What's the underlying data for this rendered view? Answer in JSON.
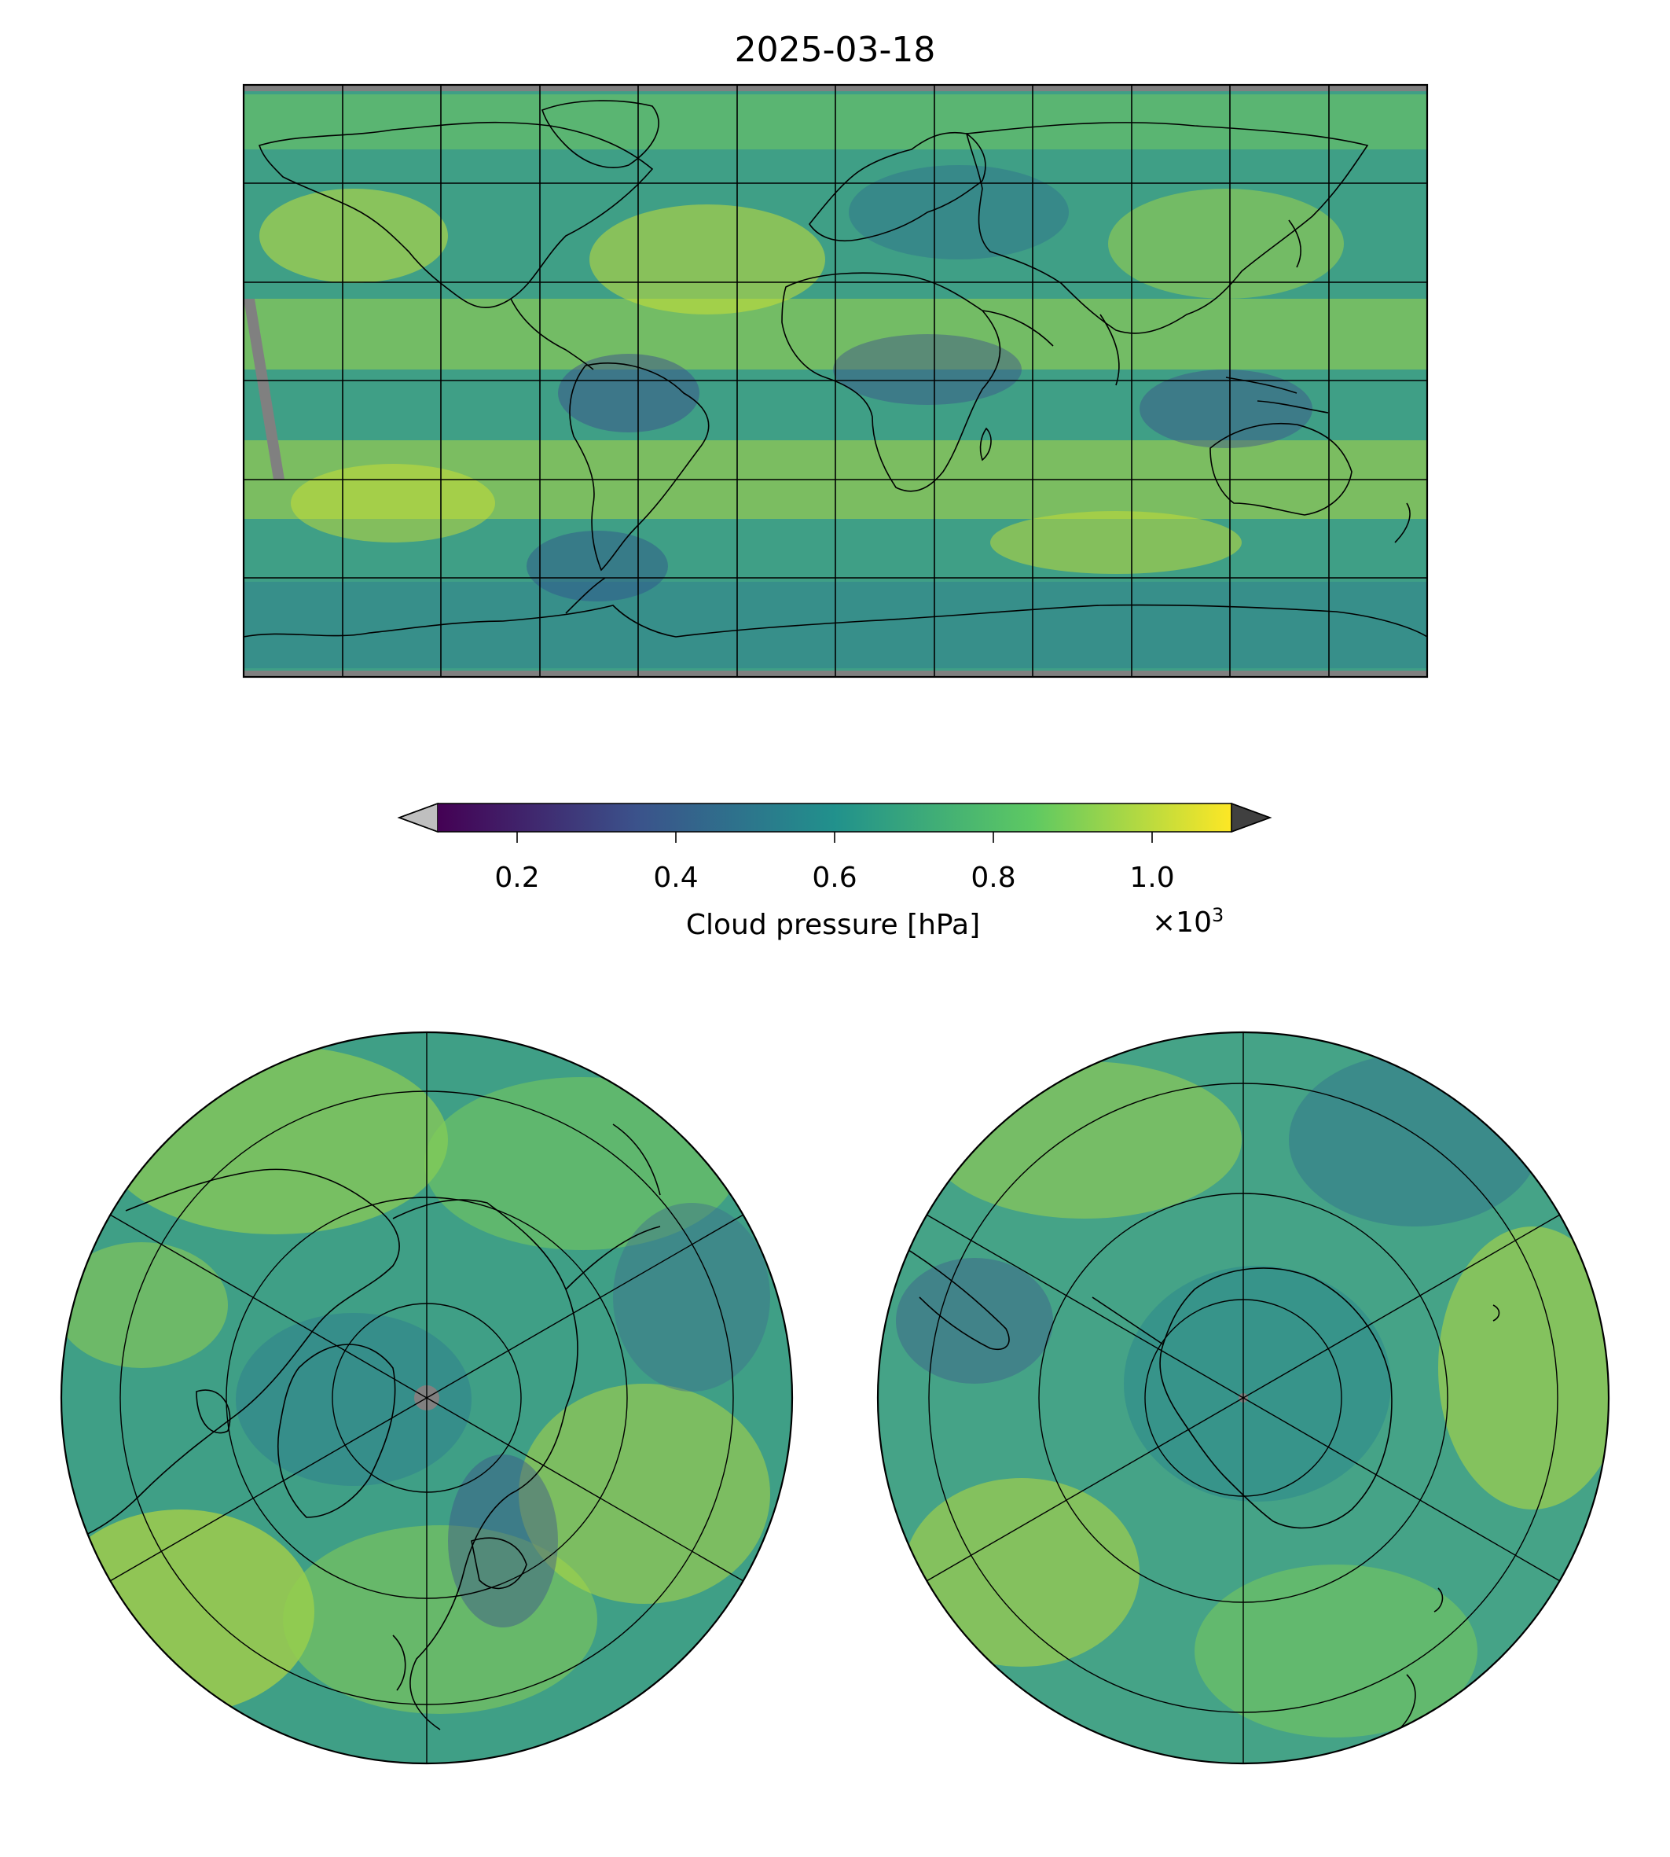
{
  "title": "2025-03-18",
  "colorbar": {
    "label": "Cloud pressure [hPa]",
    "multiplier_base": "×10",
    "multiplier_exp": "3",
    "ticks": [
      {
        "value": 0.2,
        "label": "0.2"
      },
      {
        "value": 0.4,
        "label": "0.4"
      },
      {
        "value": 0.6,
        "label": "0.6"
      },
      {
        "value": 0.8,
        "label": "0.8"
      },
      {
        "value": 1.0,
        "label": "1.0"
      }
    ],
    "range": [
      0.1,
      1.1
    ],
    "colormap": [
      "#440154",
      "#3b528b",
      "#21918c",
      "#5ec962",
      "#fde725"
    ],
    "under_color": "#bfbfbf",
    "over_color": "#404040",
    "extend": "both"
  },
  "colors": {
    "missing_data": "#808080",
    "coastline": "#000000"
  },
  "panels": [
    {
      "name": "global-map",
      "projection": "plate-carree"
    },
    {
      "name": "north-polar-map",
      "projection": "north-polar-stereographic"
    },
    {
      "name": "south-polar-map",
      "projection": "south-polar-stereographic"
    }
  ]
}
